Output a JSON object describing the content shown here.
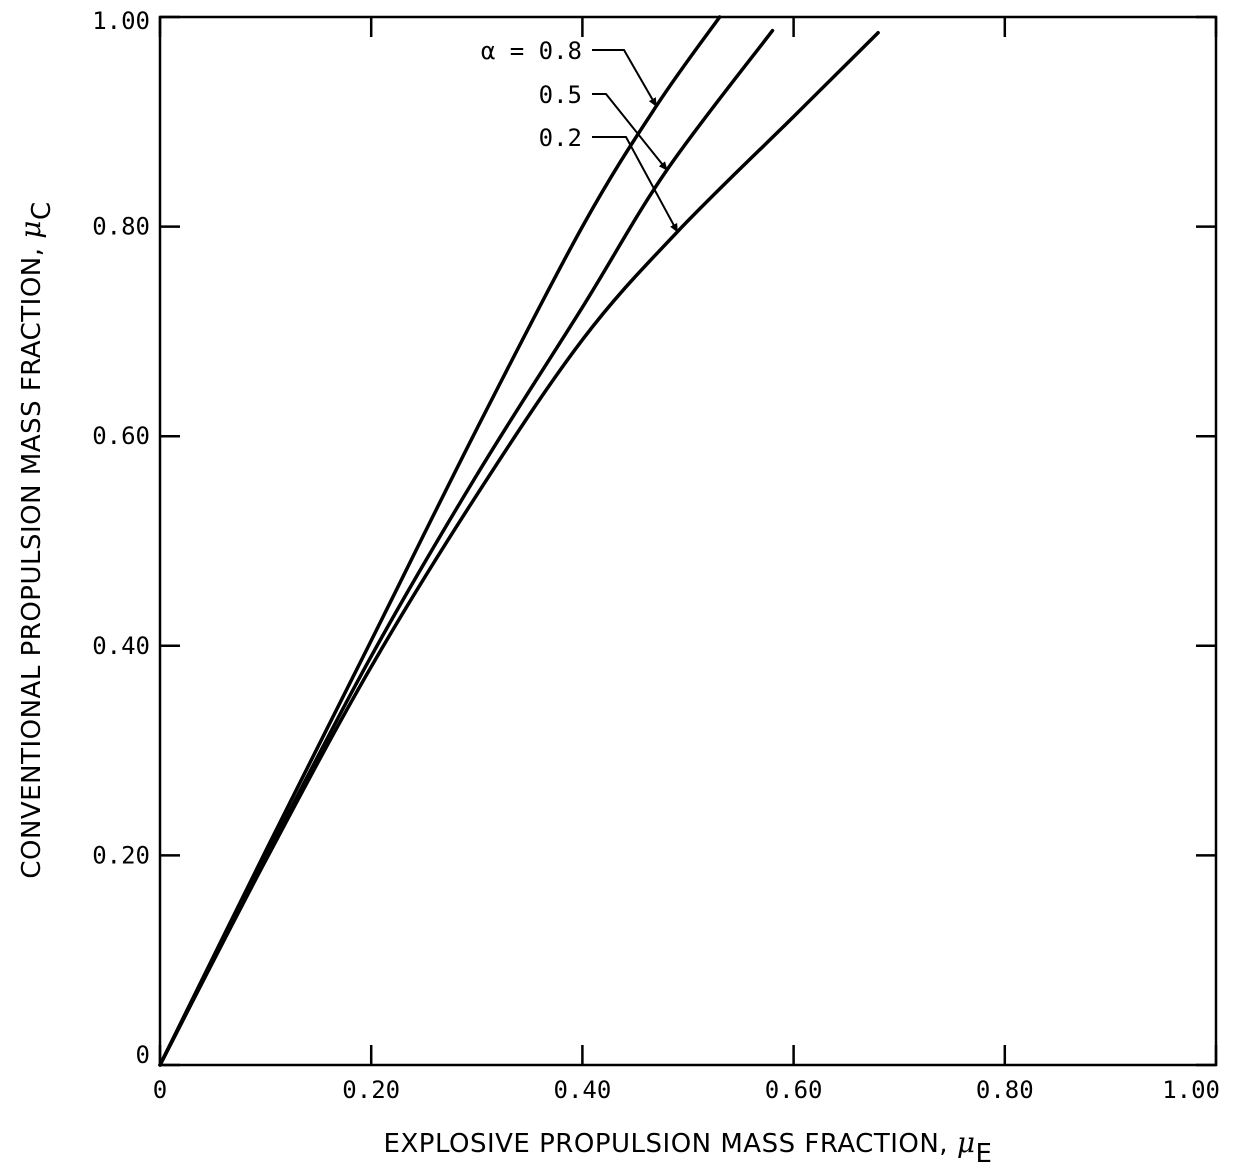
{
  "chart_data": {
    "type": "line",
    "title": "",
    "xlabel": "EXPLOSIVE PROPULSION MASS FRACTION, ",
    "xlabel_symbol": "μ",
    "xlabel_subscript": "E",
    "ylabel": "CONVENTIONAL PROPULSION MASS FRACTION, ",
    "ylabel_symbol": "μ",
    "ylabel_subscript": "C",
    "xlim": [
      0,
      1.0
    ],
    "ylim": [
      0,
      1.0
    ],
    "xticks": [
      "0",
      "0.20",
      "0.40",
      "0.60",
      "0.80",
      "1.00"
    ],
    "yticks": [
      "0",
      "0.20",
      "0.40",
      "0.60",
      "0.80",
      "1.00"
    ],
    "grid": false,
    "series": [
      {
        "name": "α = 0.8",
        "x": [
          0,
          0.1,
          0.2,
          0.3,
          0.4,
          0.47,
          0.53
        ],
        "y": [
          0,
          0.204,
          0.405,
          0.607,
          0.8,
          0.915,
          1.0
        ]
      },
      {
        "name": "0.5",
        "x": [
          0,
          0.1,
          0.2,
          0.3,
          0.4,
          0.48,
          0.58
        ],
        "y": [
          0,
          0.198,
          0.39,
          0.563,
          0.723,
          0.854,
          0.987
        ]
      },
      {
        "name": "0.2",
        "x": [
          0,
          0.1,
          0.2,
          0.3,
          0.4,
          0.49,
          0.6,
          0.68
        ],
        "y": [
          0,
          0.195,
          0.38,
          0.544,
          0.692,
          0.795,
          0.905,
          0.985
        ]
      }
    ],
    "annotations": [
      {
        "label": "α = 0.8",
        "series_index": 0,
        "points_at_x": 0.47
      },
      {
        "label": "0.5",
        "series_index": 1,
        "points_at_x": 0.48
      },
      {
        "label": "0.2",
        "series_index": 2,
        "points_at_x": 0.49
      }
    ]
  }
}
